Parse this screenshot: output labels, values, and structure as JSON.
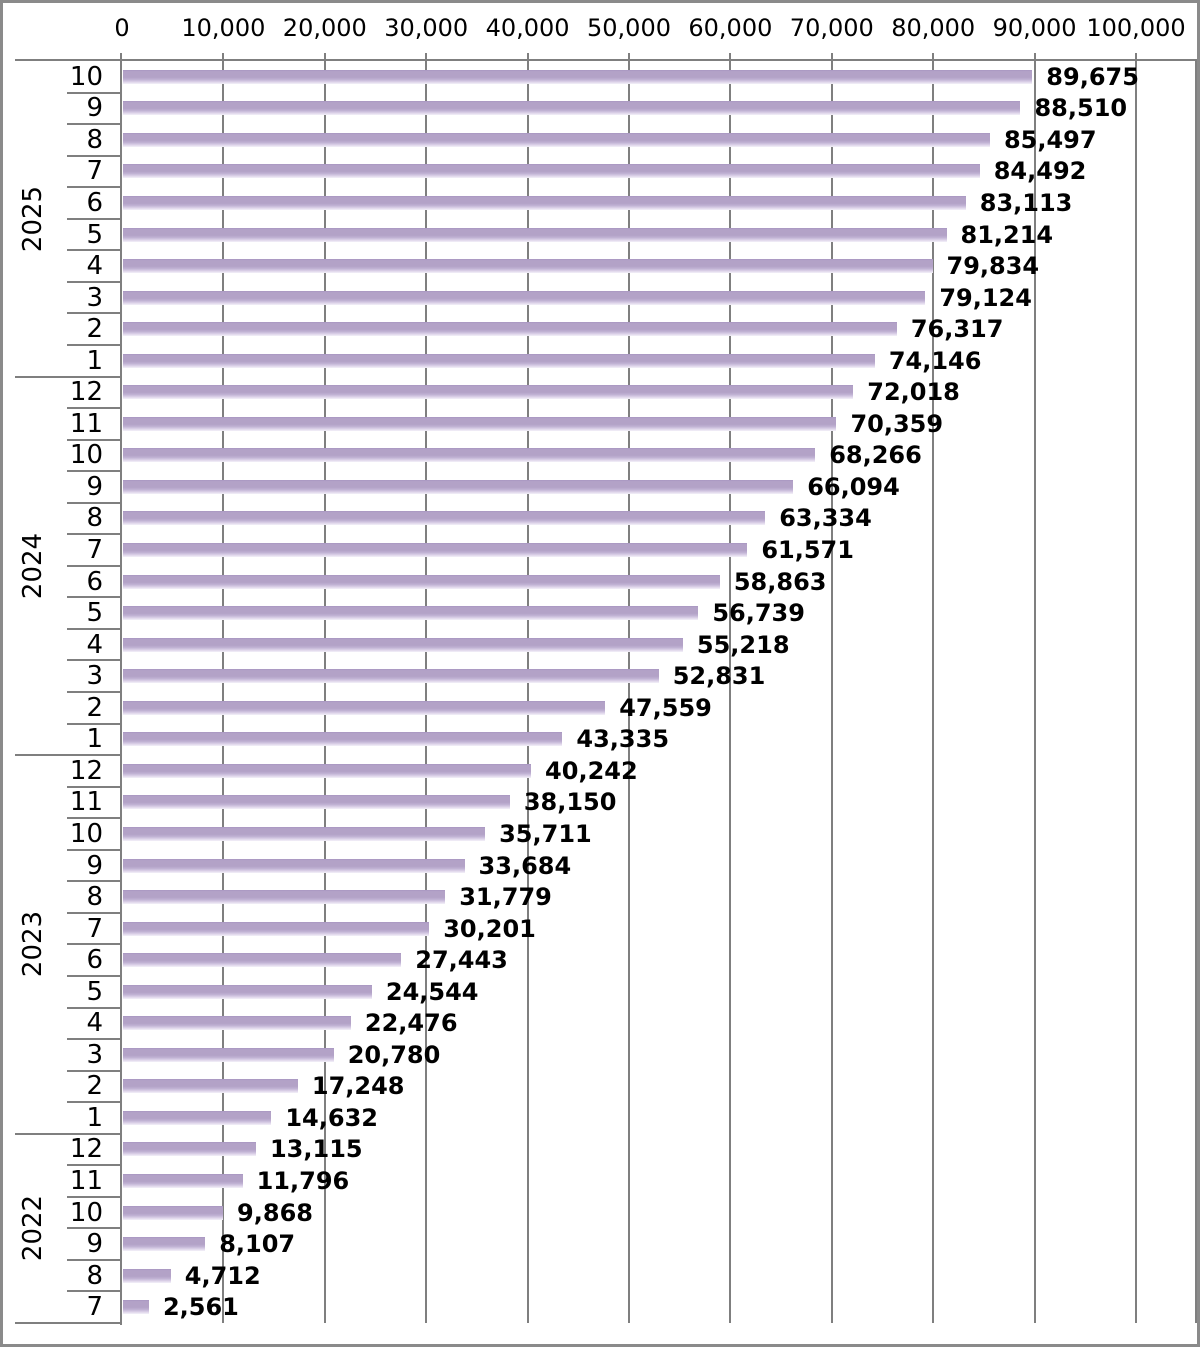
{
  "chart_data": {
    "type": "bar",
    "orientation": "horizontal",
    "title": "",
    "legend": "none",
    "grid": "vertical-on",
    "value_axis": {
      "position": "top",
      "min": 0,
      "max": 100000,
      "tick_interval": 10000,
      "ticks": [
        {
          "value": 0,
          "label": "0"
        },
        {
          "value": 10000,
          "label": "10,000"
        },
        {
          "value": 20000,
          "label": "20,000"
        },
        {
          "value": 30000,
          "label": "30,000"
        },
        {
          "value": 40000,
          "label": "40,000"
        },
        {
          "value": 50000,
          "label": "50,000"
        },
        {
          "value": 60000,
          "label": "60,000"
        },
        {
          "value": 70000,
          "label": "70,000"
        },
        {
          "value": 80000,
          "label": "80,000"
        },
        {
          "value": 90000,
          "label": "90,000"
        },
        {
          "value": 100000,
          "label": "100,000"
        }
      ]
    },
    "category_axis": {
      "position": "left",
      "outer_field": "year",
      "inner_field": "month"
    },
    "groups": [
      {
        "year": "2025",
        "rows": [
          {
            "month": "10",
            "value": 89675,
            "label": "89,675"
          },
          {
            "month": "9",
            "value": 88510,
            "label": "88,510"
          },
          {
            "month": "8",
            "value": 85497,
            "label": "85,497"
          },
          {
            "month": "7",
            "value": 84492,
            "label": "84,492"
          },
          {
            "month": "6",
            "value": 83113,
            "label": "83,113"
          },
          {
            "month": "5",
            "value": 81214,
            "label": "81,214"
          },
          {
            "month": "4",
            "value": 79834,
            "label": "79,834"
          },
          {
            "month": "3",
            "value": 79124,
            "label": "79,124"
          },
          {
            "month": "2",
            "value": 76317,
            "label": "76,317"
          },
          {
            "month": "1",
            "value": 74146,
            "label": "74,146"
          }
        ]
      },
      {
        "year": "2024",
        "rows": [
          {
            "month": "12",
            "value": 72018,
            "label": "72,018"
          },
          {
            "month": "11",
            "value": 70359,
            "label": "70,359"
          },
          {
            "month": "10",
            "value": 68266,
            "label": "68,266"
          },
          {
            "month": "9",
            "value": 66094,
            "label": "66,094"
          },
          {
            "month": "8",
            "value": 63334,
            "label": "63,334"
          },
          {
            "month": "7",
            "value": 61571,
            "label": "61,571"
          },
          {
            "month": "6",
            "value": 58863,
            "label": "58,863"
          },
          {
            "month": "5",
            "value": 56739,
            "label": "56,739"
          },
          {
            "month": "4",
            "value": 55218,
            "label": "55,218"
          },
          {
            "month": "3",
            "value": 52831,
            "label": "52,831"
          },
          {
            "month": "2",
            "value": 47559,
            "label": "47,559"
          },
          {
            "month": "1",
            "value": 43335,
            "label": "43,335"
          }
        ]
      },
      {
        "year": "2023",
        "rows": [
          {
            "month": "12",
            "value": 40242,
            "label": "40,242"
          },
          {
            "month": "11",
            "value": 38150,
            "label": "38,150"
          },
          {
            "month": "10",
            "value": 35711,
            "label": "35,711"
          },
          {
            "month": "9",
            "value": 33684,
            "label": "33,684"
          },
          {
            "month": "8",
            "value": 31779,
            "label": "31,779"
          },
          {
            "month": "7",
            "value": 30201,
            "label": "30,201"
          },
          {
            "month": "6",
            "value": 27443,
            "label": "27,443"
          },
          {
            "month": "5",
            "value": 24544,
            "label": "24,544"
          },
          {
            "month": "4",
            "value": 22476,
            "label": "22,476"
          },
          {
            "month": "3",
            "value": 20780,
            "label": "20,780"
          },
          {
            "month": "2",
            "value": 17248,
            "label": "17,248"
          },
          {
            "month": "1",
            "value": 14632,
            "label": "14,632"
          }
        ]
      },
      {
        "year": "2022",
        "rows": [
          {
            "month": "12",
            "value": 13115,
            "label": "13,115"
          },
          {
            "month": "11",
            "value": 11796,
            "label": "11,796"
          },
          {
            "month": "10",
            "value": 9868,
            "label": "9,868"
          },
          {
            "month": "9",
            "value": 8107,
            "label": "8,107"
          },
          {
            "month": "8",
            "value": 4712,
            "label": "4,712"
          },
          {
            "month": "7",
            "value": 2561,
            "label": "2,561"
          }
        ]
      }
    ],
    "style": {
      "bar_color": "#b3a2c7",
      "bar_fade_color": "#f4f1f9",
      "gridline_color": "#7f7f7f",
      "axis_line_color": "#7f7f7f",
      "chart_border_color": "#8a8a8a",
      "label_color": "#000000"
    }
  }
}
